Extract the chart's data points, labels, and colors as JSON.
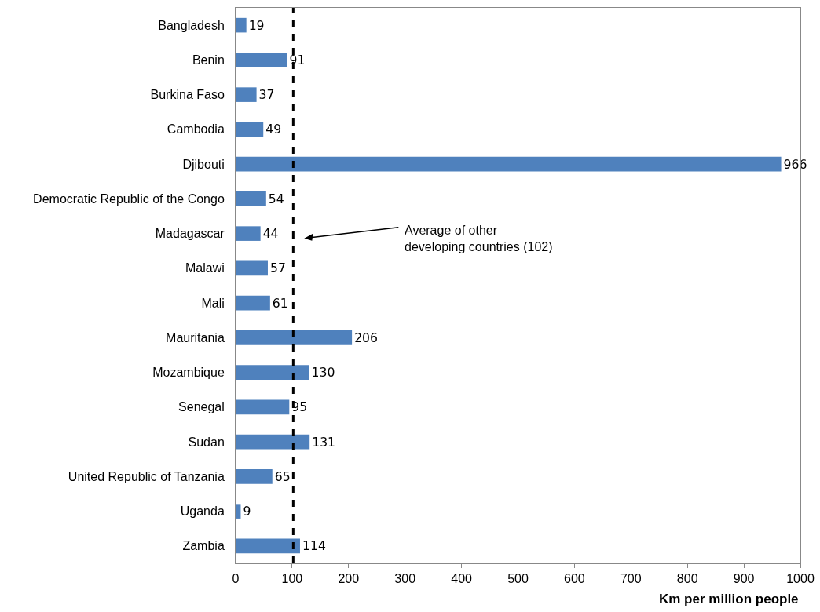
{
  "chart_data": {
    "type": "bar",
    "orientation": "horizontal",
    "categories": [
      "Bangladesh",
      "Benin",
      "Burkina Faso",
      "Cambodia",
      "Djibouti",
      "Democratic Republic of the Congo",
      "Madagascar",
      "Malawi",
      "Mali",
      "Mauritania",
      "Mozambique",
      "Senegal",
      "Sudan",
      "United Republic of Tanzania",
      "Uganda",
      "Zambia"
    ],
    "values": [
      19,
      91,
      37,
      49,
      966,
      54,
      44,
      57,
      61,
      206,
      130,
      95,
      131,
      65,
      9,
      114
    ],
    "color": "#4f81bd",
    "data_labels": true,
    "xlabel": "Km per million people",
    "xlim": [
      0,
      1000
    ],
    "xticks": [
      0,
      100,
      200,
      300,
      400,
      500,
      600,
      700,
      800,
      900,
      1000
    ],
    "grid": false,
    "ref_lines": [
      {
        "axis": "x",
        "value": 102,
        "label": "Average of other\ndeveloping countries (102)",
        "color": "#000000",
        "line_style": "dashed"
      }
    ]
  }
}
